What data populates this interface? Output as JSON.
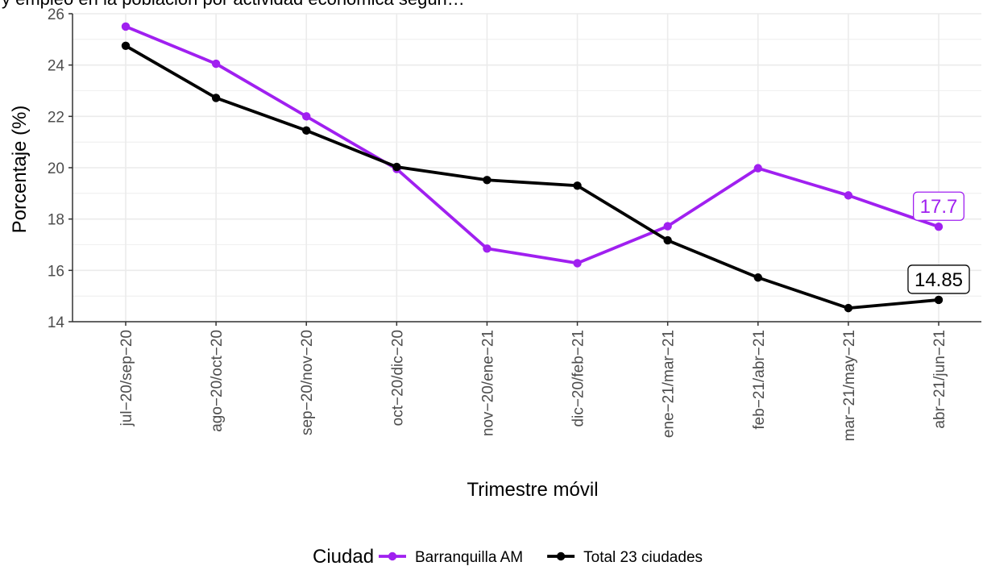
{
  "chart_data": {
    "type": "line",
    "title": "y empleo en la población por actividad económica según…",
    "xlabel": "Trimestre móvil",
    "ylabel": "Porcentaje (%)",
    "ylim": [
      14,
      26
    ],
    "y_ticks": [
      14,
      16,
      18,
      20,
      22,
      24,
      26
    ],
    "grid": true,
    "legend_position": "bottom",
    "legend_title": "Ciudad",
    "categories": [
      "jul−20/sep−20",
      "ago−20/oct−20",
      "sep−20/nov−20",
      "oct−20/dic−20",
      "nov−20/ene−21",
      "dic−20/feb−21",
      "ene−21/mar−21",
      "feb−21/abr−21",
      "mar−21/may−21",
      "abr−21/jun−21"
    ],
    "series": [
      {
        "name": "Barranquilla AM",
        "color": "#a020f0",
        "values": [
          25.5,
          24.05,
          22.0,
          19.95,
          16.85,
          16.28,
          17.72,
          19.98,
          18.92,
          17.7
        ],
        "end_label": "17.7"
      },
      {
        "name": "Total 23 ciudades",
        "color": "#000000",
        "values": [
          24.75,
          22.72,
          21.45,
          20.03,
          19.52,
          19.3,
          17.17,
          15.72,
          14.53,
          14.85
        ],
        "end_label": "14.85"
      }
    ]
  }
}
